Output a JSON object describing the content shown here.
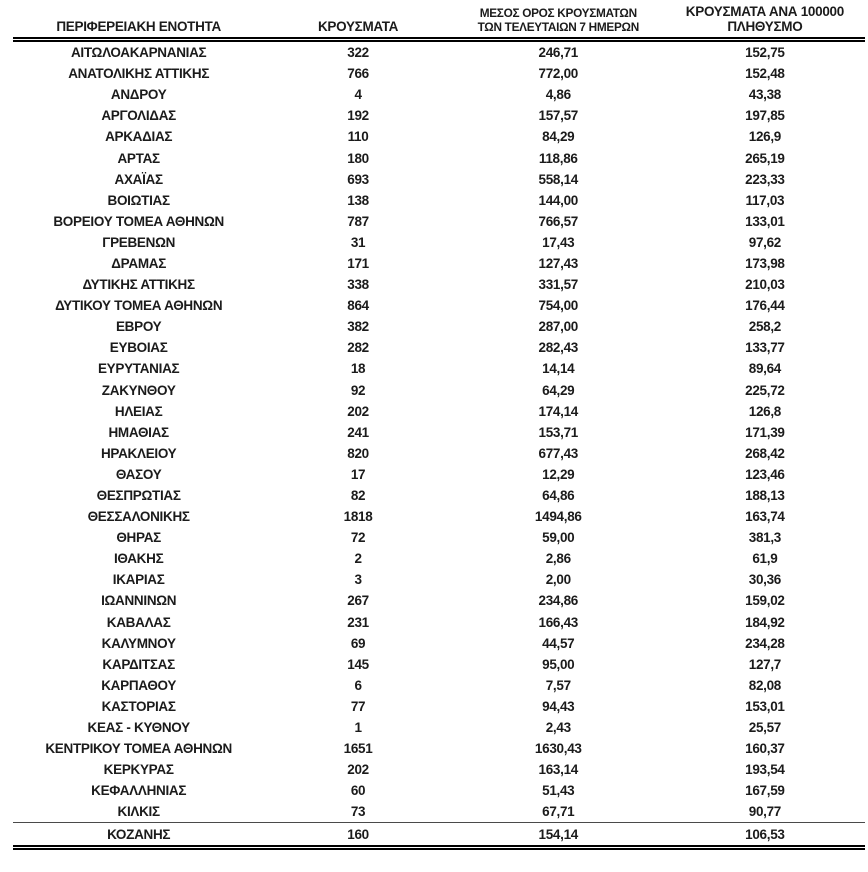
{
  "table": {
    "title_semantic": "cases-by-regional-unit-table",
    "header": {
      "col1": "ΠΕΡΙΦΕΡΕΙΑΚΗ ΕΝΟΤΗΤΑ",
      "col2": "ΚΡΟΥΣΜΑΤΑ",
      "col3_line1": "ΜΕΣΟΣ ΟΡΟΣ ΚΡΟΥΣΜΑΤΩΝ",
      "col3_line2": "ΤΩΝ ΤΕΛΕΥΤΑΙΩΝ 7 ΗΜΕΡΩΝ",
      "col4_line1": "ΚΡΟΥΣΜΑΤΑ ΑΝΑ 100000",
      "col4_line2": "ΠΛΗΘΥΣΜΟ"
    },
    "rows": [
      [
        "ΑΙΤΩΛΟΑΚΑΡΝΑΝΙΑΣ",
        "322",
        "246,71",
        "152,75"
      ],
      [
        "ΑΝΑΤΟΛΙΚΗΣ ΑΤΤΙΚΗΣ",
        "766",
        "772,00",
        "152,48"
      ],
      [
        "ΑΝΔΡΟΥ",
        "4",
        "4,86",
        "43,38"
      ],
      [
        "ΑΡΓΟΛΙΔΑΣ",
        "192",
        "157,57",
        "197,85"
      ],
      [
        "ΑΡΚΑΔΙΑΣ",
        "110",
        "84,29",
        "126,9"
      ],
      [
        "ΑΡΤΑΣ",
        "180",
        "118,86",
        "265,19"
      ],
      [
        "ΑΧΑΪΑΣ",
        "693",
        "558,14",
        "223,33"
      ],
      [
        "ΒΟΙΩΤΙΑΣ",
        "138",
        "144,00",
        "117,03"
      ],
      [
        "ΒΟΡΕΙΟΥ ΤΟΜΕΑ ΑΘΗΝΩΝ",
        "787",
        "766,57",
        "133,01"
      ],
      [
        "ΓΡΕΒΕΝΩΝ",
        "31",
        "17,43",
        "97,62"
      ],
      [
        "ΔΡΑΜΑΣ",
        "171",
        "127,43",
        "173,98"
      ],
      [
        "ΔΥΤΙΚΗΣ ΑΤΤΙΚΗΣ",
        "338",
        "331,57",
        "210,03"
      ],
      [
        "ΔΥΤΙΚΟΥ ΤΟΜΕΑ ΑΘΗΝΩΝ",
        "864",
        "754,00",
        "176,44"
      ],
      [
        "ΕΒΡΟΥ",
        "382",
        "287,00",
        "258,2"
      ],
      [
        "ΕΥΒΟΙΑΣ",
        "282",
        "282,43",
        "133,77"
      ],
      [
        "ΕΥΡΥΤΑΝΙΑΣ",
        "18",
        "14,14",
        "89,64"
      ],
      [
        "ΖΑΚΥΝΘΟΥ",
        "92",
        "64,29",
        "225,72"
      ],
      [
        "ΗΛΕΙΑΣ",
        "202",
        "174,14",
        "126,8"
      ],
      [
        "ΗΜΑΘΙΑΣ",
        "241",
        "153,71",
        "171,39"
      ],
      [
        "ΗΡΑΚΛΕΙΟΥ",
        "820",
        "677,43",
        "268,42"
      ],
      [
        "ΘΑΣΟΥ",
        "17",
        "12,29",
        "123,46"
      ],
      [
        "ΘΕΣΠΡΩΤΙΑΣ",
        "82",
        "64,86",
        "188,13"
      ],
      [
        "ΘΕΣΣΑΛΟΝΙΚΗΣ",
        "1818",
        "1494,86",
        "163,74"
      ],
      [
        "ΘΗΡΑΣ",
        "72",
        "59,00",
        "381,3"
      ],
      [
        "ΙΘΑΚΗΣ",
        "2",
        "2,86",
        "61,9"
      ],
      [
        "ΙΚΑΡΙΑΣ",
        "3",
        "2,00",
        "30,36"
      ],
      [
        "ΙΩΑΝΝΙΝΩΝ",
        "267",
        "234,86",
        "159,02"
      ],
      [
        "ΚΑΒΑΛΑΣ",
        "231",
        "166,43",
        "184,92"
      ],
      [
        "ΚΑΛΥΜΝΟΥ",
        "69",
        "44,57",
        "234,28"
      ],
      [
        "ΚΑΡΔΙΤΣΑΣ",
        "145",
        "95,00",
        "127,7"
      ],
      [
        "ΚΑΡΠΑΘΟΥ",
        "6",
        "7,57",
        "82,08"
      ],
      [
        "ΚΑΣΤΟΡΙΑΣ",
        "77",
        "94,43",
        "153,01"
      ],
      [
        "ΚΕΑΣ - ΚΥΘΝΟΥ",
        "1",
        "2,43",
        "25,57"
      ],
      [
        "ΚΕΝΤΡΙΚΟΥ ΤΟΜΕΑ ΑΘΗΝΩΝ",
        "1651",
        "1630,43",
        "160,37"
      ],
      [
        "ΚΕΡΚΥΡΑΣ",
        "202",
        "163,14",
        "193,54"
      ],
      [
        "ΚΕΦΑΛΛΗΝΙΑΣ",
        "60",
        "51,43",
        "167,59"
      ],
      [
        "ΚΙΛΚΙΣ",
        "73",
        "67,71",
        "90,77"
      ],
      [
        "ΚΟΖΑΝΗΣ",
        "160",
        "154,14",
        "106,53"
      ]
    ],
    "cell_names": [
      "region-name",
      "cases-value",
      "avg7days-value",
      "per100k-value"
    ],
    "colors": {
      "text": "#1b1b1b",
      "rule": "#000000",
      "background": "#ffffff"
    }
  }
}
